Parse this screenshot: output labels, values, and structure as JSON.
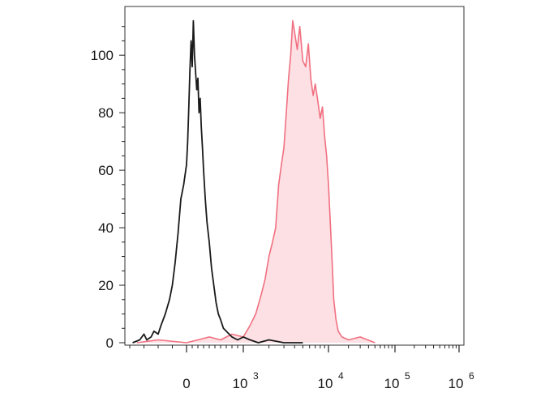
{
  "chart_data": {
    "type": "area",
    "title": "",
    "xlabel": "",
    "ylabel": "",
    "x_scale": "biexponential",
    "xlim": [
      -400,
      1300000
    ],
    "ylim": [
      0,
      115
    ],
    "x_ticks": [
      {
        "value": 0,
        "base": "0",
        "exp": ""
      },
      {
        "value": 1000,
        "base": "10",
        "exp": "3"
      },
      {
        "value": 10000,
        "base": "10",
        "exp": "4"
      },
      {
        "value": 100000,
        "base": "10",
        "exp": "5"
      },
      {
        "value": 1000000,
        "base": "10",
        "exp": "6"
      }
    ],
    "y_ticks": [
      0,
      20,
      40,
      60,
      80,
      100
    ],
    "grid": false,
    "legend": "none",
    "colors": {
      "control": "#1a1a1a",
      "stained_line": "#f07080",
      "stained_fill": "#fde0e4"
    },
    "series": [
      {
        "role": "control",
        "style": "line",
        "x": [
          -380,
          -330,
          -300,
          -280,
          -250,
          -230,
          -200,
          -180,
          -150,
          -120,
          -100,
          -80,
          -60,
          -40,
          -20,
          0,
          20,
          40,
          60,
          80,
          100,
          120,
          140,
          160,
          180,
          200,
          220,
          240,
          260,
          280,
          300,
          330,
          360,
          400,
          440,
          480,
          520,
          560,
          600,
          650,
          700,
          750,
          800,
          900,
          1000,
          1200,
          1500,
          2000,
          3000,
          5000
        ],
        "y": [
          0,
          1,
          3,
          1,
          2,
          4,
          3,
          6,
          10,
          15,
          20,
          28,
          38,
          50,
          55,
          62,
          70,
          82,
          95,
          105,
          96,
          112,
          100,
          94,
          88,
          92,
          80,
          85,
          75,
          68,
          60,
          50,
          42,
          35,
          26,
          20,
          14,
          10,
          8,
          5,
          4,
          3,
          2,
          1,
          2,
          1,
          0,
          1,
          0,
          0
        ]
      },
      {
        "role": "stained",
        "style": "filled",
        "x": [
          -350,
          -200,
          0,
          200,
          400,
          600,
          800,
          1000,
          1200,
          1400,
          1600,
          1800,
          2000,
          2200,
          2400,
          2600,
          2800,
          3000,
          3200,
          3400,
          3600,
          3800,
          4000,
          4300,
          4600,
          5000,
          5400,
          5800,
          6200,
          6600,
          7000,
          7500,
          8000,
          8500,
          9000,
          9500,
          10000,
          10500,
          11000,
          11500,
          12000,
          13000,
          14000,
          16000,
          20000,
          30000,
          50000
        ],
        "y": [
          0,
          1,
          0,
          1,
          2,
          1,
          3,
          2,
          6,
          10,
          16,
          22,
          30,
          35,
          40,
          55,
          62,
          68,
          80,
          92,
          100,
          112,
          108,
          102,
          110,
          98,
          96,
          104,
          92,
          86,
          90,
          84,
          78,
          82,
          72,
          65,
          55,
          45,
          35,
          25,
          15,
          8,
          4,
          2,
          1,
          2,
          0
        ]
      }
    ]
  }
}
